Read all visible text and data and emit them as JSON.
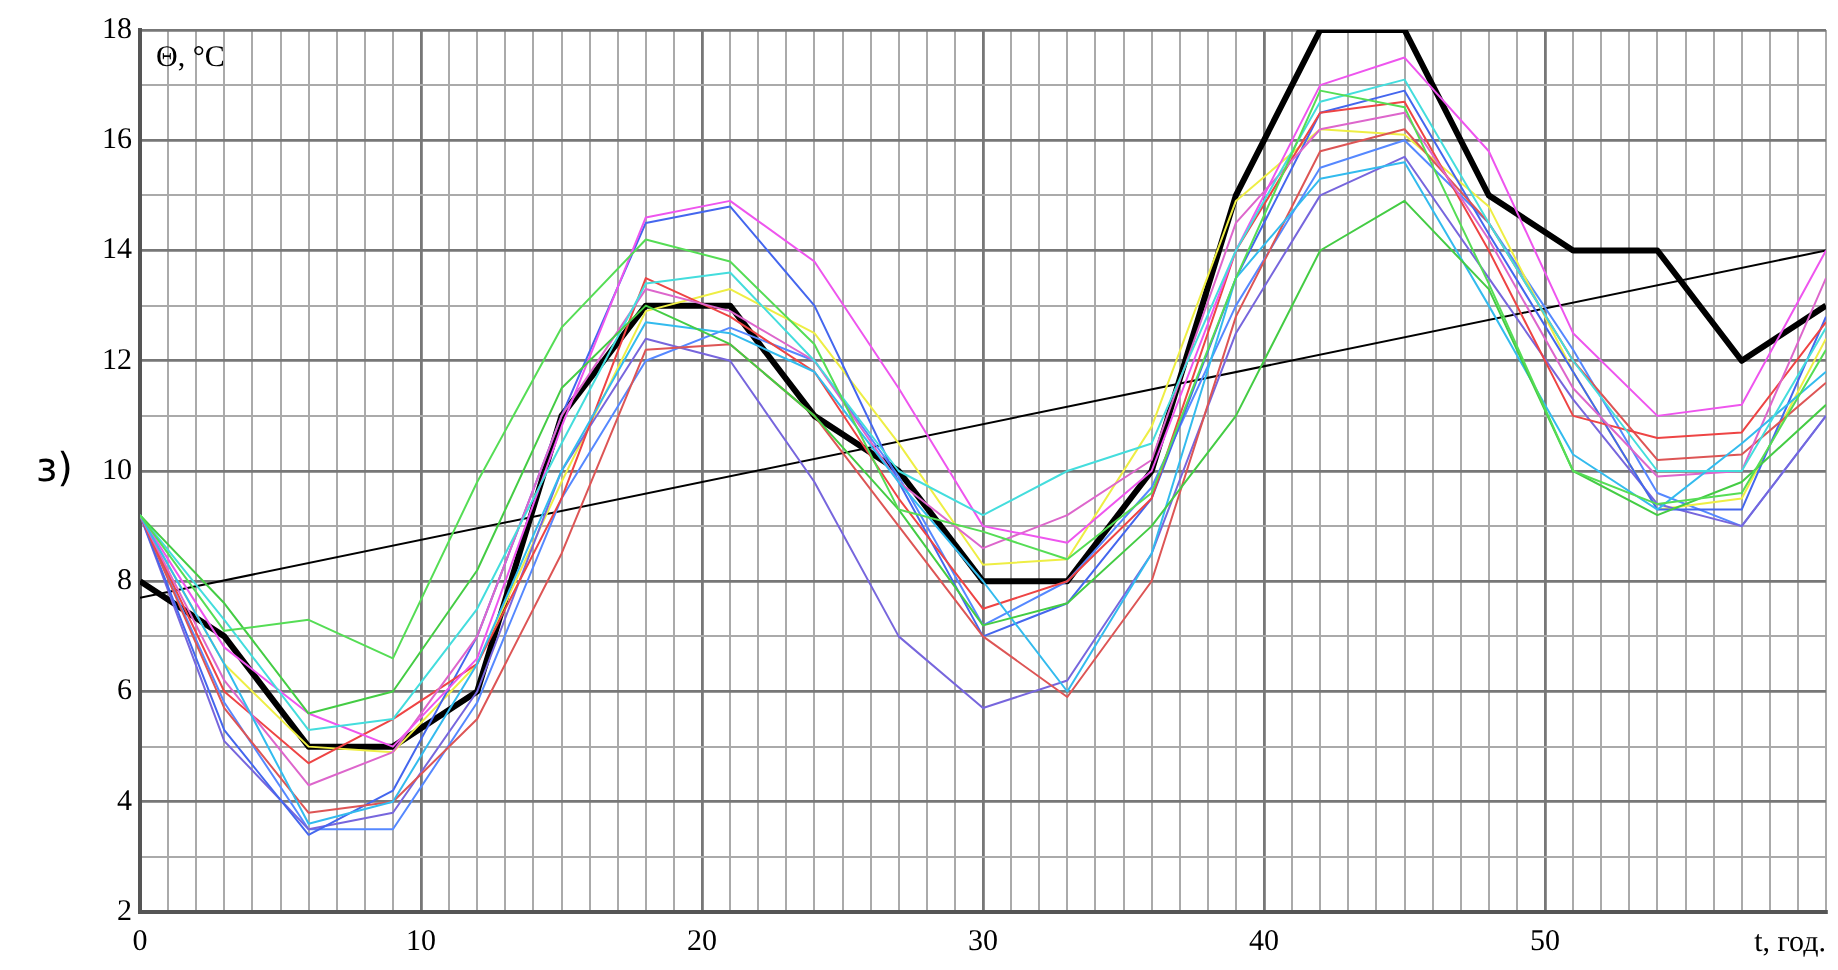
{
  "chart_data": {
    "type": "line",
    "xlabel": "t, год.",
    "ylabel": "Θ, °C",
    "annotations": [
      "з)"
    ],
    "x": [
      0,
      3,
      6,
      9,
      12,
      15,
      18,
      21,
      24,
      27,
      30,
      33,
      36,
      39,
      42,
      45,
      48,
      51,
      54,
      57,
      60
    ],
    "xlim": [
      0,
      60
    ],
    "ylim": [
      2,
      18
    ],
    "xticks": [
      0,
      {
        "value": 1,
        "label": null
      },
      {
        "value": 2,
        "label": null
      },
      {
        "value": 3,
        "label": null
      },
      {
        "value": 4,
        "label": null
      },
      {
        "value": 5,
        "label": null
      },
      {
        "value": 6,
        "label": null
      },
      {
        "value": 7,
        "label": null
      },
      {
        "value": 8,
        "label": null
      },
      {
        "value": 9,
        "label": null
      },
      10,
      {
        "value": 11,
        "label": null
      },
      {
        "value": 12,
        "label": null
      },
      {
        "value": 13,
        "label": null
      },
      {
        "value": 14,
        "label": null
      },
      {
        "value": 15,
        "label": null
      },
      {
        "value": 16,
        "label": null
      },
      {
        "value": 17,
        "label": null
      },
      {
        "value": 18,
        "label": null
      },
      {
        "value": 19,
        "label": null
      },
      20,
      {
        "value": 21,
        "label": null
      },
      {
        "value": 22,
        "label": null
      },
      {
        "value": 23,
        "label": null
      },
      {
        "value": 24,
        "label": null
      },
      {
        "value": 25,
        "label": null
      },
      {
        "value": 26,
        "label": null
      },
      {
        "value": 27,
        "label": null
      },
      {
        "value": 28,
        "label": null
      },
      {
        "value": 29,
        "label": null
      },
      30,
      {
        "value": 31,
        "label": null
      },
      {
        "value": 32,
        "label": null
      },
      {
        "value": 33,
        "label": null
      },
      {
        "value": 34,
        "label": null
      },
      {
        "value": 35,
        "label": null
      },
      {
        "value": 36,
        "label": null
      },
      {
        "value": 37,
        "label": null
      },
      {
        "value": 38,
        "label": null
      },
      {
        "value": 39,
        "label": null
      },
      40,
      {
        "value": 41,
        "label": null
      },
      {
        "value": 42,
        "label": null
      },
      {
        "value": 43,
        "label": null
      },
      {
        "value": 44,
        "label": null
      },
      {
        "value": 45,
        "label": null
      },
      {
        "value": 46,
        "label": null
      },
      {
        "value": 47,
        "label": null
      },
      {
        "value": 48,
        "label": null
      },
      {
        "value": 49,
        "label": null
      },
      50,
      {
        "value": 51,
        "label": null
      },
      {
        "value": 52,
        "label": null
      },
      {
        "value": 53,
        "label": null
      },
      {
        "value": 54,
        "label": null
      },
      {
        "value": 55,
        "label": null
      },
      {
        "value": 56,
        "label": null
      },
      {
        "value": 57,
        "label": null
      },
      {
        "value": 58,
        "label": null
      },
      {
        "value": 59,
        "label": null
      },
      {
        "value": 60,
        "label": null
      }
    ],
    "yticks": [
      2,
      {
        "value": 3,
        "label": null
      },
      4,
      {
        "value": 5,
        "label": null
      },
      6,
      {
        "value": 7,
        "label": null
      },
      8,
      {
        "value": 9,
        "label": null
      },
      10,
      {
        "value": 11,
        "label": null
      },
      12,
      {
        "value": 13,
        "label": null
      },
      14,
      {
        "value": 15,
        "label": null
      },
      16,
      {
        "value": 17,
        "label": null
      },
      18
    ],
    "grid": true,
    "legend": false,
    "marker": "none",
    "line_style": "solid",
    "series": [
      {
        "color": "#55dd55",
        "values": [
          9.2,
          7.1,
          7.3,
          6.6,
          9.8,
          12.6,
          14.2,
          13.8,
          12.3,
          9.3,
          8.9,
          8.4,
          9.6,
          13.5,
          16.9,
          16.6,
          13.4,
          10.0,
          9.4,
          9.6,
          12.2
        ]
      },
      {
        "color": "#44cc44",
        "values": [
          9.2,
          7.6,
          5.6,
          6.0,
          8.2,
          11.5,
          13.0,
          12.3,
          11.0,
          9.3,
          7.2,
          7.6,
          9.0,
          11.0,
          14.0,
          14.9,
          13.3,
          10.0,
          9.2,
          9.8,
          11.2
        ]
      },
      {
        "color": "#44dddd",
        "values": [
          9.2,
          7.3,
          5.3,
          5.5,
          7.5,
          10.5,
          13.4,
          13.6,
          12.0,
          10.0,
          9.2,
          10.0,
          10.5,
          14.0,
          16.7,
          17.1,
          14.5,
          12.0,
          10.0,
          10.0,
          12.6
        ]
      },
      {
        "color": "#33bbee",
        "values": [
          9.2,
          6.5,
          3.6,
          4.0,
          6.5,
          10.0,
          12.7,
          12.5,
          11.8,
          9.8,
          8.0,
          6.0,
          8.5,
          13.5,
          15.3,
          15.6,
          13.0,
          10.3,
          9.3,
          10.5,
          11.8
        ]
      },
      {
        "color": "#ee55ee",
        "values": [
          9.2,
          6.8,
          5.6,
          5.0,
          6.6,
          10.8,
          14.6,
          14.9,
          13.8,
          11.5,
          9.0,
          8.7,
          10.0,
          14.0,
          17.0,
          17.5,
          15.8,
          12.5,
          11.0,
          11.2,
          14.0
        ]
      },
      {
        "color": "#dd66cc",
        "values": [
          9.2,
          6.2,
          4.3,
          4.9,
          7.0,
          11.0,
          13.3,
          12.9,
          12.0,
          9.8,
          8.6,
          9.2,
          10.2,
          14.5,
          16.2,
          16.5,
          14.2,
          11.5,
          9.9,
          10.0,
          13.5
        ]
      },
      {
        "color": "#ee4444",
        "values": [
          9.2,
          6.0,
          4.7,
          5.5,
          6.5,
          9.5,
          13.5,
          12.8,
          11.8,
          9.5,
          7.5,
          8.0,
          9.5,
          14.0,
          16.5,
          16.7,
          14.0,
          11.0,
          10.6,
          10.7,
          12.7
        ]
      },
      {
        "color": "#dd5555",
        "values": [
          9.2,
          5.7,
          3.8,
          4.0,
          5.5,
          8.5,
          12.2,
          12.3,
          11.0,
          9.0,
          7.0,
          5.9,
          8.0,
          12.8,
          15.8,
          16.2,
          14.5,
          12.0,
          10.2,
          10.3,
          11.6
        ]
      },
      {
        "color": "#4466ee",
        "values": [
          9.2,
          5.3,
          3.4,
          4.2,
          7.0,
          11.0,
          14.5,
          14.8,
          13.0,
          9.8,
          7.0,
          7.6,
          9.5,
          13.5,
          16.5,
          16.9,
          14.3,
          11.8,
          9.3,
          9.3,
          12.8
        ]
      },
      {
        "color": "#7766dd",
        "values": [
          9.2,
          5.1,
          3.5,
          3.8,
          6.0,
          10.0,
          12.4,
          12.0,
          9.8,
          7.0,
          5.7,
          6.2,
          8.5,
          12.5,
          15.0,
          15.7,
          13.5,
          11.3,
          9.4,
          9.0,
          11.0
        ]
      },
      {
        "color": "#eeee44",
        "values": [
          9.2,
          6.5,
          5.0,
          4.9,
          6.5,
          9.8,
          12.9,
          13.3,
          12.5,
          10.5,
          8.3,
          8.4,
          10.8,
          14.9,
          16.2,
          16.1,
          14.8,
          11.8,
          9.3,
          9.5,
          12.4
        ]
      },
      {
        "color": "#5588ff",
        "values": [
          9.2,
          5.8,
          3.5,
          3.5,
          5.8,
          9.5,
          12.0,
          12.6,
          12.0,
          9.9,
          7.2,
          8.0,
          9.7,
          13.0,
          15.5,
          16.0,
          14.5,
          12.2,
          9.6,
          9.0,
          11.0
        ]
      },
      {
        "color": "#000000",
        "values": [
          8,
          7,
          5,
          5,
          6,
          11,
          13,
          13,
          11,
          10,
          8,
          8,
          10,
          15,
          18,
          18,
          15,
          14,
          14,
          12,
          13
        ]
      },
      {
        "color": "#000000",
        "x": [
          0,
          60
        ],
        "values": [
          7.7,
          14.0
        ]
      }
    ]
  }
}
